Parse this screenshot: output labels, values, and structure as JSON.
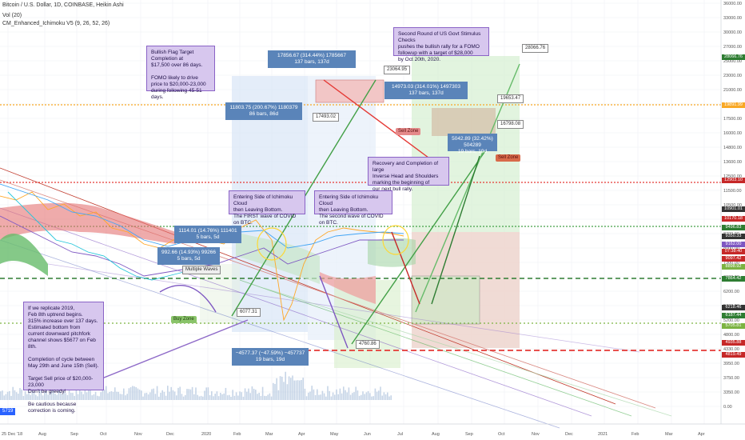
{
  "header": {
    "title": "Bitcoin / U.S. Dollar, 1D, COINBASE, Heikin Ashi",
    "volume": "Vol (20)",
    "indicator": "CM_Enhanced_Ichimoku V5 (9, 26, 52, 26)"
  },
  "chart_data": {
    "type": "line",
    "y_axis_ticks": [
      "36000.00",
      "33000.00",
      "30000.00",
      "27000.00",
      "25000.00",
      "23000.00",
      "21000.00",
      "19000.00",
      "17500.00",
      "16000.00",
      "14800.00",
      "13600.00",
      "12500.00",
      "11500.00",
      "10500.00",
      "9500.00",
      "8700.00",
      "8000.00",
      "7300.00",
      "6800.00",
      "6200.00",
      "5700.00",
      "5200.00",
      "4800.00",
      "4330.00",
      "3950.00",
      "3750.00",
      "3350.00",
      "0.00"
    ],
    "x_axis_ticks": [
      "25 Dec '18",
      "Aug",
      "Sep",
      "Oct",
      "Nov",
      "Dec",
      "2020",
      "Feb",
      "Mar",
      "Apr",
      "May",
      "Jun",
      "Jul",
      "Aug",
      "Sep",
      "Oct",
      "Nov",
      "Dec",
      "2021",
      "Feb",
      "Mar",
      "Apr"
    ],
    "price_levels": [
      {
        "label": "28066.76",
        "color": "#2e7d32"
      },
      {
        "label": "19891.99",
        "color": "#f9a825"
      },
      {
        "label": "12903.10",
        "color": "#c62828"
      },
      {
        "label": "10901.01",
        "color": "#333333"
      },
      {
        "label": "10170.18",
        "color": "#c62828"
      },
      {
        "label": "9496.83",
        "color": "#2e7d32"
      },
      {
        "label": "9350.33",
        "color": "#333333"
      },
      {
        "label": "9162.00",
        "color": "#7e57c2"
      },
      {
        "label": "07:38:40",
        "color": "#c62828"
      },
      {
        "label": "9097.42",
        "color": "#c62828"
      },
      {
        "label": "8898.92",
        "color": "#7cb342"
      },
      {
        "label": "7864.42",
        "color": "#2e7d32"
      },
      {
        "label": "6218.46",
        "color": "#333333"
      },
      {
        "label": "6187.44",
        "color": "#2e7d32"
      },
      {
        "label": "5705.81",
        "color": "#7cb342"
      },
      {
        "label": "4935.88",
        "color": "#c62828"
      },
      {
        "label": "4819.49",
        "color": "#c62828"
      }
    ],
    "price_tags": [
      "23064.95",
      "28066.76",
      "17493.02",
      "19653.47",
      "16798.08",
      "6077.31",
      "4760.86"
    ],
    "measurements": [
      {
        "line1": "17856.67 (314.44%) 1785667",
        "line2": "137 bars, 137d"
      },
      {
        "line1": "11803.75 (200.67%) 1180379",
        "line2": "86 bars, 86d"
      },
      {
        "line1": "14973.03 (314.01%) 1497303",
        "line2": "137 bars, 137d"
      },
      {
        "line1": "5042.89 (32.42%) 504289",
        "line2": "19 bars, 19d"
      },
      {
        "line1": "1114.01 (14.76%) 111401",
        "line2": "5 bars, 5d"
      },
      {
        "line1": "992.66 (14.93%) 99266",
        "line2": "5 bars, 5d"
      },
      {
        "line1": "−4577.37 (−47.59%) −457737",
        "line2": "19 bars, 19d"
      }
    ],
    "zones": [
      "Sell Zone",
      "Sell Zone",
      "Buy Zone"
    ],
    "legend": "none",
    "grid": true
  },
  "notes": {
    "bullish_flag": "Bullish Flag Target\nCompletion at\n$17,500 over 86 days.\n\nFOMO likely to drive\nprice to $20,000-23,000\nduring following 45-51 days.",
    "stimulus": "Second Round of US Govt Stimulus Checks\npushes the bullish rally for a FOMO\nfollowup with a target of $28,000\nby Oct 20th, 2020.",
    "recovery": "Recovery and Completion of large\nInverse Head and Shoulders\nmarking the beginning of\nour next bull rally.",
    "cloud1": "Entering Side of Ichimoku Cloud\nthen Leaving Bottom.\nThe FIRST wave of COVID on BTC.",
    "cloud2": "Entering Side of Ichimoku Cloud\nthen Leaving Bottom.\nThe second wave of COVID on BTC.",
    "replicate": "If we replicate 2019,\nFeb 8th uptrend begins.\n315% increase over 137 days.\nEstimated bottom from\ncurrent downward pitchfork\nchannel shows $5677 on Feb 8th.\n\nCompletion of cycle between\nMay 29th and June 15th (Sell).\n\nTarget Sell price of $20,000-23,000\nDon't be greedy!\n\nBe cautious because\ncorrection is coming."
  },
  "misc": {
    "ohlc_badge": "5719",
    "small_tag": "Multiple Waves"
  }
}
